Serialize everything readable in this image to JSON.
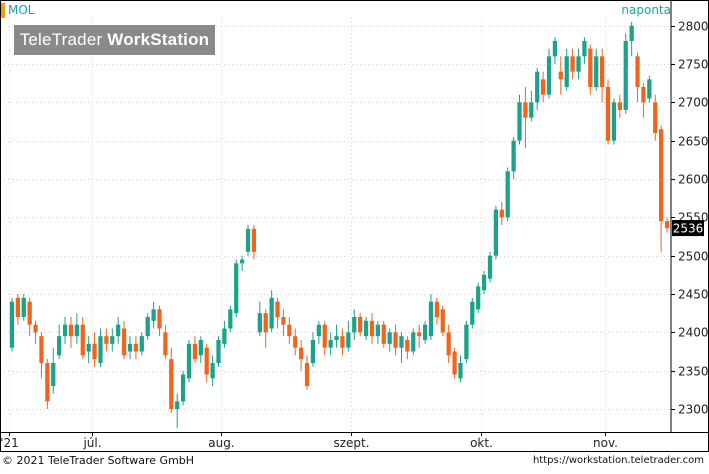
{
  "header": {
    "symbol": "MOL",
    "period": "naponta",
    "watermark_normal": "TeleTrader ",
    "watermark_bold": "WorkStation"
  },
  "footer": {
    "copyright": "© 2021 TeleTrader Software GmbH",
    "url": "https://workstation.teletrader.com"
  },
  "colors": {
    "up": "#1aa38a",
    "down": "#f0641e",
    "grid": "#d4d4d4",
    "accent": "#1aa3a3"
  },
  "chart_data": {
    "type": "candlestick",
    "ylim": [
      2270,
      2810
    ],
    "yticks": [
      2300,
      2350,
      2400,
      2450,
      2500,
      2550,
      2600,
      2650,
      2700,
      2750,
      2800
    ],
    "xlabels": [
      {
        "label": "'21",
        "index": 0
      },
      {
        "label": "júl.",
        "index": 14
      },
      {
        "label": "aug.",
        "index": 36
      },
      {
        "label": "szept.",
        "index": 58
      },
      {
        "label": "okt.",
        "index": 80
      },
      {
        "label": "nov.",
        "index": 101
      }
    ],
    "last_price": "2536",
    "last_value": 2536,
    "candles": [
      [
        2380,
        2440,
        2375,
        2445
      ],
      [
        2445,
        2420,
        2410,
        2450
      ],
      [
        2420,
        2445,
        2415,
        2450
      ],
      [
        2440,
        2410,
        2395,
        2445
      ],
      [
        2410,
        2400,
        2385,
        2415
      ],
      [
        2395,
        2360,
        2340,
        2400
      ],
      [
        2360,
        2310,
        2300,
        2365
      ],
      [
        2330,
        2360,
        2320,
        2380
      ],
      [
        2370,
        2395,
        2365,
        2410
      ],
      [
        2395,
        2410,
        2385,
        2420
      ],
      [
        2410,
        2395,
        2380,
        2420
      ],
      [
        2395,
        2410,
        2385,
        2425
      ],
      [
        2410,
        2370,
        2365,
        2420
      ],
      [
        2375,
        2385,
        2360,
        2395
      ],
      [
        2385,
        2365,
        2355,
        2400
      ],
      [
        2360,
        2395,
        2355,
        2405
      ],
      [
        2395,
        2385,
        2375,
        2405
      ],
      [
        2385,
        2395,
        2375,
        2405
      ],
      [
        2395,
        2410,
        2385,
        2420
      ],
      [
        2405,
        2370,
        2365,
        2415
      ],
      [
        2375,
        2385,
        2365,
        2395
      ],
      [
        2385,
        2375,
        2365,
        2395
      ],
      [
        2375,
        2395,
        2370,
        2400
      ],
      [
        2395,
        2420,
        2390,
        2425
      ],
      [
        2415,
        2430,
        2405,
        2440
      ],
      [
        2430,
        2405,
        2395,
        2435
      ],
      [
        2400,
        2370,
        2365,
        2410
      ],
      [
        2365,
        2300,
        2295,
        2380
      ],
      [
        2300,
        2310,
        2275,
        2320
      ],
      [
        2310,
        2345,
        2305,
        2350
      ],
      [
        2340,
        2385,
        2335,
        2390
      ],
      [
        2385,
        2365,
        2360,
        2395
      ],
      [
        2370,
        2390,
        2360,
        2395
      ],
      [
        2380,
        2345,
        2335,
        2385
      ],
      [
        2340,
        2360,
        2330,
        2370
      ],
      [
        2360,
        2390,
        2355,
        2395
      ],
      [
        2385,
        2405,
        2380,
        2415
      ],
      [
        2405,
        2430,
        2400,
        2435
      ],
      [
        2425,
        2490,
        2420,
        2495
      ],
      [
        2490,
        2495,
        2480,
        2500
      ],
      [
        2505,
        2535,
        2500,
        2540
      ],
      [
        2535,
        2505,
        2495,
        2540
      ],
      [
        2400,
        2425,
        2395,
        2440
      ],
      [
        2425,
        2400,
        2380,
        2430
      ],
      [
        2405,
        2445,
        2400,
        2455
      ],
      [
        2440,
        2420,
        2405,
        2445
      ],
      [
        2420,
        2410,
        2395,
        2430
      ],
      [
        2410,
        2395,
        2385,
        2420
      ],
      [
        2395,
        2380,
        2370,
        2405
      ],
      [
        2380,
        2365,
        2350,
        2390
      ],
      [
        2360,
        2330,
        2325,
        2370
      ],
      [
        2360,
        2390,
        2355,
        2400
      ],
      [
        2395,
        2410,
        2385,
        2415
      ],
      [
        2410,
        2380,
        2370,
        2415
      ],
      [
        2380,
        2390,
        2370,
        2400
      ],
      [
        2390,
        2395,
        2380,
        2410
      ],
      [
        2395,
        2380,
        2370,
        2405
      ],
      [
        2380,
        2400,
        2375,
        2415
      ],
      [
        2400,
        2420,
        2390,
        2430
      ],
      [
        2420,
        2400,
        2395,
        2425
      ],
      [
        2395,
        2415,
        2390,
        2420
      ],
      [
        2415,
        2395,
        2385,
        2425
      ],
      [
        2395,
        2410,
        2385,
        2415
      ],
      [
        2410,
        2385,
        2380,
        2415
      ],
      [
        2385,
        2400,
        2375,
        2405
      ],
      [
        2400,
        2380,
        2370,
        2410
      ],
      [
        2380,
        2395,
        2360,
        2400
      ],
      [
        2390,
        2375,
        2365,
        2395
      ],
      [
        2375,
        2400,
        2370,
        2405
      ],
      [
        2400,
        2395,
        2380,
        2410
      ],
      [
        2390,
        2410,
        2385,
        2415
      ],
      [
        2395,
        2440,
        2390,
        2450
      ],
      [
        2440,
        2420,
        2410,
        2445
      ],
      [
        2430,
        2400,
        2395,
        2435
      ],
      [
        2400,
        2370,
        2360,
        2410
      ],
      [
        2375,
        2345,
        2340,
        2380
      ],
      [
        2340,
        2360,
        2335,
        2370
      ],
      [
        2365,
        2410,
        2360,
        2415
      ],
      [
        2410,
        2440,
        2405,
        2445
      ],
      [
        2430,
        2460,
        2425,
        2465
      ],
      [
        2455,
        2475,
        2450,
        2480
      ],
      [
        2470,
        2500,
        2465,
        2505
      ],
      [
        2500,
        2560,
        2495,
        2565
      ],
      [
        2560,
        2550,
        2540,
        2570
      ],
      [
        2550,
        2610,
        2545,
        2615
      ],
      [
        2610,
        2650,
        2600,
        2655
      ],
      [
        2650,
        2700,
        2645,
        2710
      ],
      [
        2700,
        2680,
        2640,
        2720
      ],
      [
        2680,
        2700,
        2675,
        2715
      ],
      [
        2700,
        2740,
        2690,
        2745
      ],
      [
        2730,
        2710,
        2700,
        2740
      ],
      [
        2710,
        2760,
        2705,
        2770
      ],
      [
        2760,
        2780,
        2750,
        2785
      ],
      [
        2740,
        2730,
        2710,
        2760
      ],
      [
        2720,
        2760,
        2715,
        2770
      ],
      [
        2760,
        2740,
        2730,
        2770
      ],
      [
        2740,
        2760,
        2730,
        2770
      ],
      [
        2760,
        2780,
        2750,
        2785
      ],
      [
        2770,
        2720,
        2710,
        2775
      ],
      [
        2720,
        2760,
        2715,
        2770
      ],
      [
        2760,
        2720,
        2700,
        2770
      ],
      [
        2720,
        2650,
        2645,
        2730
      ],
      [
        2650,
        2700,
        2645,
        2705
      ],
      [
        2700,
        2690,
        2680,
        2710
      ],
      [
        2690,
        2780,
        2685,
        2790
      ],
      [
        2780,
        2800,
        2760,
        2805
      ],
      [
        2760,
        2720,
        2700,
        2765
      ],
      [
        2720,
        2700,
        2680,
        2725
      ],
      [
        2705,
        2730,
        2700,
        2735
      ],
      [
        2700,
        2660,
        2650,
        2710
      ],
      [
        2665,
        2545,
        2505,
        2670
      ],
      [
        2545,
        2536,
        2530,
        2550
      ]
    ]
  }
}
